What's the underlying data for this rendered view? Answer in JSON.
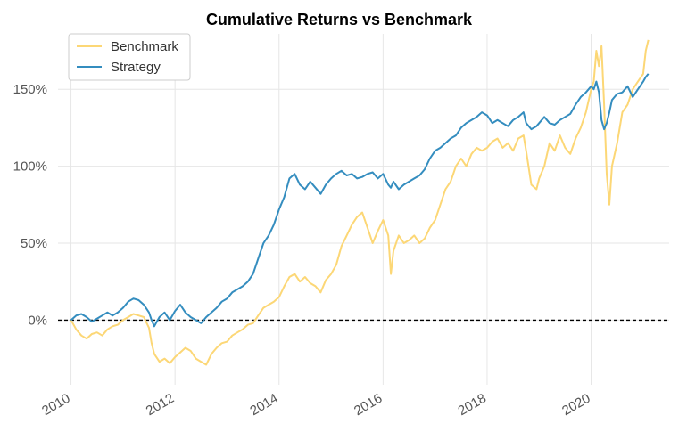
{
  "chart_data": {
    "type": "line",
    "title": "Cumulative Returns vs Benchmark",
    "xlabel": "",
    "ylabel": "",
    "xlim": [
      2009.75,
      2021.5
    ],
    "ylim": [
      -42,
      186
    ],
    "x_ticks": [
      2010,
      2012,
      2014,
      2016,
      2018,
      2020
    ],
    "x_tick_labels": [
      "2010",
      "2012",
      "2014",
      "2016",
      "2018",
      "2020"
    ],
    "y_ticks": [
      0,
      50,
      100,
      150
    ],
    "y_tick_labels": [
      "0%",
      "50%",
      "100%",
      "150%"
    ],
    "grid": true,
    "reference_line": {
      "y": 0,
      "style": "dashed",
      "color": "#000000"
    },
    "legend": {
      "position": "top-left",
      "entries": [
        "Benchmark",
        "Strategy"
      ]
    },
    "series": [
      {
        "name": "Benchmark",
        "color": "#FCD776",
        "x": [
          2010.0,
          2010.1,
          2010.2,
          2010.3,
          2010.4,
          2010.5,
          2010.6,
          2010.7,
          2010.8,
          2010.9,
          2011.0,
          2011.1,
          2011.2,
          2011.3,
          2011.4,
          2011.5,
          2011.55,
          2011.6,
          2011.7,
          2011.8,
          2011.9,
          2012.0,
          2012.1,
          2012.2,
          2012.3,
          2012.4,
          2012.5,
          2012.6,
          2012.7,
          2012.8,
          2012.9,
          2013.0,
          2013.1,
          2013.2,
          2013.3,
          2013.4,
          2013.5,
          2013.6,
          2013.7,
          2013.8,
          2013.9,
          2014.0,
          2014.1,
          2014.2,
          2014.3,
          2014.4,
          2014.5,
          2014.6,
          2014.7,
          2014.8,
          2014.9,
          2015.0,
          2015.1,
          2015.2,
          2015.3,
          2015.4,
          2015.5,
          2015.6,
          2015.7,
          2015.8,
          2015.9,
          2016.0,
          2016.1,
          2016.15,
          2016.2,
          2016.3,
          2016.4,
          2016.5,
          2016.6,
          2016.7,
          2016.8,
          2016.9,
          2017.0,
          2017.1,
          2017.2,
          2017.3,
          2017.4,
          2017.5,
          2017.6,
          2017.7,
          2017.8,
          2017.9,
          2018.0,
          2018.1,
          2018.2,
          2018.3,
          2018.4,
          2018.5,
          2018.6,
          2018.7,
          2018.75,
          2018.85,
          2018.95,
          2019.0,
          2019.1,
          2019.2,
          2019.3,
          2019.4,
          2019.5,
          2019.6,
          2019.7,
          2019.8,
          2019.9,
          2020.0,
          2020.05,
          2020.1,
          2020.15,
          2020.2,
          2020.25,
          2020.3,
          2020.35,
          2020.4,
          2020.5,
          2020.6,
          2020.7,
          2020.8,
          2020.9,
          2021.0,
          2021.05,
          2021.1
        ],
        "values": [
          0,
          -6,
          -10,
          -12,
          -9,
          -8,
          -10,
          -6,
          -4,
          -3,
          0,
          2,
          4,
          3,
          2,
          -5,
          -15,
          -22,
          -27,
          -25,
          -28,
          -24,
          -21,
          -18,
          -20,
          -25,
          -27,
          -29,
          -22,
          -18,
          -15,
          -14,
          -10,
          -8,
          -6,
          -3,
          -2,
          3,
          8,
          10,
          12,
          15,
          22,
          28,
          30,
          25,
          28,
          24,
          22,
          18,
          26,
          30,
          36,
          48,
          55,
          62,
          67,
          70,
          60,
          50,
          58,
          65,
          55,
          30,
          45,
          55,
          50,
          52,
          55,
          50,
          53,
          60,
          65,
          75,
          85,
          90,
          100,
          105,
          100,
          108,
          112,
          110,
          112,
          116,
          118,
          112,
          115,
          110,
          118,
          120,
          110,
          88,
          85,
          92,
          100,
          115,
          110,
          120,
          112,
          108,
          118,
          125,
          135,
          150,
          155,
          175,
          165,
          178,
          140,
          95,
          75,
          100,
          115,
          135,
          140,
          150,
          155,
          160,
          175,
          182
        ],
        "line_width": 2
      },
      {
        "name": "Strategy",
        "color": "#348DBF",
        "x": [
          2010.0,
          2010.1,
          2010.2,
          2010.3,
          2010.4,
          2010.5,
          2010.6,
          2010.7,
          2010.8,
          2010.9,
          2011.0,
          2011.1,
          2011.2,
          2011.3,
          2011.4,
          2011.5,
          2011.55,
          2011.6,
          2011.7,
          2011.8,
          2011.9,
          2012.0,
          2012.1,
          2012.2,
          2012.3,
          2012.4,
          2012.5,
          2012.6,
          2012.7,
          2012.8,
          2012.9,
          2013.0,
          2013.1,
          2013.2,
          2013.3,
          2013.4,
          2013.5,
          2013.6,
          2013.7,
          2013.8,
          2013.9,
          2014.0,
          2014.1,
          2014.2,
          2014.3,
          2014.4,
          2014.5,
          2014.6,
          2014.7,
          2014.8,
          2014.9,
          2015.0,
          2015.1,
          2015.2,
          2015.3,
          2015.4,
          2015.5,
          2015.6,
          2015.7,
          2015.8,
          2015.9,
          2016.0,
          2016.1,
          2016.15,
          2016.2,
          2016.3,
          2016.4,
          2016.5,
          2016.6,
          2016.7,
          2016.8,
          2016.9,
          2017.0,
          2017.1,
          2017.2,
          2017.3,
          2017.4,
          2017.5,
          2017.6,
          2017.7,
          2017.8,
          2017.9,
          2018.0,
          2018.1,
          2018.2,
          2018.3,
          2018.4,
          2018.5,
          2018.6,
          2018.7,
          2018.75,
          2018.85,
          2018.95,
          2019.0,
          2019.1,
          2019.2,
          2019.3,
          2019.4,
          2019.5,
          2019.6,
          2019.7,
          2019.8,
          2019.9,
          2020.0,
          2020.05,
          2020.1,
          2020.15,
          2020.2,
          2020.25,
          2020.3,
          2020.35,
          2020.4,
          2020.5,
          2020.6,
          2020.7,
          2020.8,
          2020.9,
          2021.0,
          2021.05,
          2021.1
        ],
        "values": [
          0,
          3,
          4,
          2,
          -1,
          1,
          3,
          5,
          3,
          5,
          8,
          12,
          14,
          13,
          10,
          5,
          0,
          -4,
          2,
          5,
          0,
          6,
          10,
          5,
          2,
          0,
          -2,
          2,
          5,
          8,
          12,
          14,
          18,
          20,
          22,
          25,
          30,
          40,
          50,
          55,
          62,
          72,
          80,
          92,
          95,
          88,
          85,
          90,
          86,
          82,
          88,
          92,
          95,
          97,
          94,
          95,
          92,
          93,
          95,
          96,
          92,
          95,
          88,
          86,
          90,
          85,
          88,
          90,
          92,
          94,
          98,
          105,
          110,
          112,
          115,
          118,
          120,
          125,
          128,
          130,
          132,
          135,
          133,
          128,
          130,
          128,
          126,
          130,
          132,
          135,
          128,
          124,
          126,
          128,
          132,
          128,
          127,
          130,
          132,
          134,
          140,
          145,
          148,
          152,
          150,
          155,
          148,
          130,
          124,
          128,
          135,
          143,
          147,
          148,
          152,
          145,
          150,
          155,
          158,
          160
        ],
        "line_width": 2
      }
    ]
  }
}
